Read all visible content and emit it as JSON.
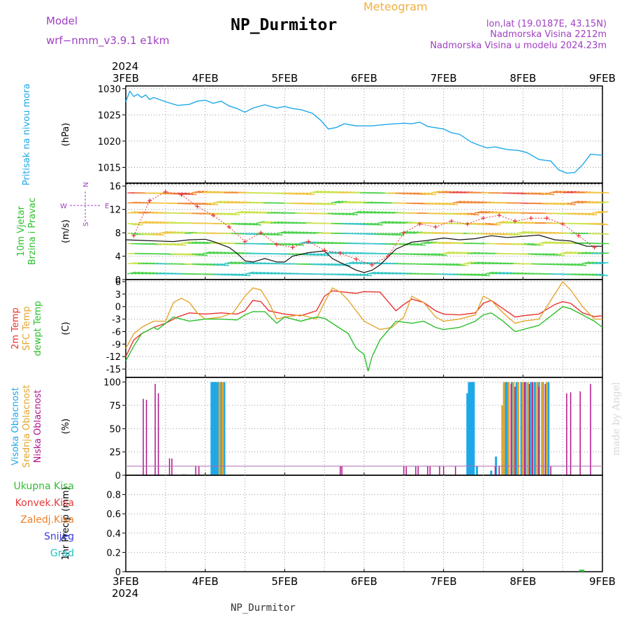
{
  "header": {
    "title": "NP_Durmitor",
    "model_label": "Model",
    "model_name": "wrf−nmm_v3.9.1  e1km",
    "meteogram_label": "Meteogram",
    "coords": "lon,lat (19.0187E, 43.15N)",
    "elevation": "Nadmorska Visina 2212m",
    "model_elevation": "Nadmorska Visina u modelu 2024.23m",
    "footer_station": "NP_Durmitor",
    "watermark": "made by Angel"
  },
  "colors": {
    "pressure": "#1ea8e8",
    "temp2m": "#e8332f",
    "sfc": "#e3a62e",
    "dew": "#2bbf2b",
    "high_cloud": "#1ea8e8",
    "mid_cloud": "#e3a62e",
    "low_cloud": "#b0148c",
    "gust": "#111111",
    "compass": "#a040c0",
    "total_precip": "#33bb33",
    "conv_precip": "#e83a3a",
    "freezing_precip": "#f07f2a",
    "snow": "#3a3ae0",
    "hail": "#22c2c2"
  },
  "compass": {
    "w": "W",
    "e": "E",
    "n": "N",
    "s": "S"
  },
  "chart_data": {
    "type": "line",
    "title": "NP_Durmitor",
    "x_year_label": "2024",
    "x_categories": [
      "3FEB",
      "4FEB",
      "5FEB",
      "6FEB",
      "7FEB",
      "8FEB",
      "9FEB"
    ],
    "xlim_days": [
      0,
      6
    ],
    "panels": [
      {
        "id": "pressure",
        "left_labels": [
          "Pritisak na nivou mora"
        ],
        "unit": "(hPa)",
        "ylim": [
          1012,
          1030.5
        ],
        "yticks": [
          1015,
          1020,
          1025,
          1030
        ],
        "series": [
          {
            "name": "Pritisak na nivou mora",
            "x": [
              0,
              0.05,
              0.1,
              0.15,
              0.2,
              0.25,
              0.3,
              0.35,
              0.5,
              0.65,
              0.8,
              0.9,
              1.0,
              1.1,
              1.2,
              1.3,
              1.4,
              1.5,
              1.6,
              1.75,
              1.9,
              2.0,
              2.1,
              2.2,
              2.35,
              2.45,
              2.55,
              2.65,
              2.75,
              2.9,
              3.1,
              3.3,
              3.5,
              3.6,
              3.7,
              3.8,
              4.0,
              4.1,
              4.2,
              4.35,
              4.45,
              4.55,
              4.65,
              4.8,
              4.95,
              5.05,
              5.2,
              5.35,
              5.45,
              5.55,
              5.65,
              5.75,
              5.85,
              6.0
            ],
            "values": [
              1027.5,
              1029.5,
              1028.5,
              1028.9,
              1028.3,
              1028.8,
              1027.9,
              1028.3,
              1027.5,
              1026.8,
              1027.0,
              1027.6,
              1027.8,
              1027.2,
              1027.6,
              1026.7,
              1026.2,
              1025.5,
              1026.3,
              1026.9,
              1026.3,
              1026.6,
              1026.2,
              1026.0,
              1025.3,
              1024.0,
              1022.3,
              1022.6,
              1023.3,
              1022.9,
              1022.9,
              1023.2,
              1023.4,
              1023.3,
              1023.6,
              1022.8,
              1022.3,
              1021.6,
              1021.3,
              1019.8,
              1019.2,
              1018.7,
              1018.9,
              1018.4,
              1018.2,
              1017.8,
              1016.5,
              1016.2,
              1014.5,
              1013.9,
              1014.0,
              1015.5,
              1017.5,
              1017.3
            ]
          }
        ]
      },
      {
        "id": "wind",
        "left_labels": [
          "10m Vjetar",
          "Brzina i Pravac"
        ],
        "unit": "(m/s)",
        "ylim": [
          0,
          16.5
        ],
        "yticks": [
          0,
          4,
          8,
          12,
          16
        ],
        "series": [
          {
            "name": "mean speed",
            "x": [
              0,
              0.2,
              0.4,
              0.6,
              0.8,
              1.0,
              1.1,
              1.2,
              1.3,
              1.4,
              1.5,
              1.6,
              1.75,
              1.9,
              2.0,
              2.1,
              2.3,
              2.5,
              2.6,
              2.7,
              2.8,
              2.9,
              3.0,
              3.1,
              3.2,
              3.4,
              3.6,
              3.8,
              4.0,
              4.2,
              4.4,
              4.6,
              4.8,
              5.0,
              5.2,
              5.4,
              5.6,
              5.8,
              6.0
            ],
            "values": [
              6.8,
              6.7,
              6.6,
              6.5,
              6.8,
              6.9,
              6.5,
              6.0,
              5.5,
              4.5,
              3.2,
              3.0,
              3.6,
              3.0,
              3.0,
              4.0,
              4.6,
              4.9,
              3.6,
              2.9,
              2.3,
              1.6,
              1.2,
              1.6,
              2.5,
              5.2,
              6.4,
              6.7,
              7.1,
              6.8,
              7.0,
              7.5,
              7.2,
              7.4,
              7.6,
              6.8,
              6.6,
              5.7,
              5.7
            ]
          },
          {
            "name": "gust",
            "x": [
              0.1,
              0.3,
              0.5,
              0.7,
              0.9,
              1.1,
              1.3,
              1.5,
              1.7,
              1.9,
              2.1,
              2.3,
              2.5,
              2.7,
              2.9,
              3.1,
              3.3,
              3.5,
              3.7,
              3.9,
              4.1,
              4.3,
              4.5,
              4.7,
              4.9,
              5.1,
              5.3,
              5.5,
              5.7,
              5.9
            ],
            "values": [
              7.5,
              13.5,
              15.0,
              14.5,
              12.5,
              11.0,
              9.0,
              6.5,
              8.0,
              6.0,
              5.5,
              6.5,
              5.0,
              4.5,
              3.5,
              2.5,
              4.0,
              8.0,
              9.5,
              9.0,
              10.0,
              9.5,
              10.5,
              11.0,
              10.0,
              10.5,
              10.5,
              9.5,
              7.5,
              5.5
            ]
          }
        ]
      },
      {
        "id": "temperature",
        "left_labels": [
          "2m Temp",
          "SFC Temp",
          "dewpt Temp"
        ],
        "unit": "(C)",
        "ylim": [
          -17,
          6.5
        ],
        "yticks": [
          6,
          3,
          0,
          -3,
          -6,
          -9,
          -12,
          -15
        ],
        "series": [
          {
            "name": "2m Temp",
            "x": [
              0,
              0.1,
              0.2,
              0.35,
              0.5,
              0.65,
              0.8,
              1.0,
              1.2,
              1.4,
              1.5,
              1.6,
              1.7,
              1.8,
              2.0,
              2.2,
              2.4,
              2.5,
              2.6,
              2.75,
              2.9,
              3.0,
              3.2,
              3.4,
              3.5,
              3.6,
              3.75,
              3.9,
              4.0,
              4.2,
              4.4,
              4.5,
              4.6,
              4.75,
              4.9,
              5.0,
              5.2,
              5.4,
              5.5,
              5.6,
              5.75,
              5.9,
              6.0
            ],
            "values": [
              -12.0,
              -8.0,
              -6.5,
              -5.0,
              -4.0,
              -2.5,
              -1.5,
              -1.8,
              -1.5,
              -1.8,
              -1.0,
              1.5,
              1.2,
              -1.0,
              -1.8,
              -2.2,
              -1.0,
              2.5,
              3.8,
              3.5,
              3.2,
              3.6,
              3.5,
              -1.0,
              0.5,
              1.8,
              1.0,
              -1.0,
              -1.8,
              -2.0,
              -1.5,
              0.8,
              1.5,
              -0.5,
              -2.5,
              -2.2,
              -1.8,
              0.5,
              1.2,
              0.8,
              -1.5,
              -2.4,
              -2.2
            ]
          },
          {
            "name": "SFC Temp",
            "x": [
              0,
              0.1,
              0.2,
              0.35,
              0.5,
              0.6,
              0.7,
              0.8,
              0.9,
              1.0,
              1.2,
              1.35,
              1.5,
              1.6,
              1.7,
              1.8,
              1.9,
              2.0,
              2.2,
              2.4,
              2.5,
              2.6,
              2.7,
              2.8,
              3.0,
              3.2,
              3.35,
              3.5,
              3.6,
              3.75,
              3.9,
              4.0,
              4.2,
              4.4,
              4.5,
              4.6,
              4.75,
              4.9,
              5.0,
              5.2,
              5.4,
              5.5,
              5.6,
              5.75,
              5.9,
              6.0
            ],
            "values": [
              -10.0,
              -6.5,
              -5.0,
              -3.5,
              -3.5,
              1.0,
              2.0,
              1.0,
              -1.5,
              -3.0,
              -2.5,
              -1.5,
              2.5,
              4.5,
              4.0,
              1.0,
              -3.0,
              -2.5,
              -2.0,
              -3.0,
              1.0,
              4.5,
              3.5,
              1.5,
              -3.5,
              -5.5,
              -5.0,
              -2.5,
              2.5,
              1.0,
              -2.5,
              -3.5,
              -3.0,
              -2.0,
              2.5,
              1.5,
              -1.5,
              -4.0,
              -3.5,
              -3.0,
              3.0,
              6.0,
              4.0,
              0.0,
              -3.0,
              -3.0
            ]
          },
          {
            "name": "dewpt Temp",
            "x": [
              0,
              0.1,
              0.2,
              0.35,
              0.4,
              0.6,
              0.8,
              1.0,
              1.2,
              1.4,
              1.5,
              1.6,
              1.75,
              1.9,
              2.0,
              2.2,
              2.4,
              2.5,
              2.6,
              2.8,
              2.9,
              3.0,
              3.05,
              3.1,
              3.2,
              3.4,
              3.6,
              3.75,
              3.9,
              4.0,
              4.2,
              4.4,
              4.5,
              4.6,
              4.75,
              4.9,
              5.0,
              5.2,
              5.4,
              5.5,
              5.6,
              5.75,
              5.9,
              6.0
            ],
            "values": [
              -13.0,
              -9.5,
              -6.5,
              -5.0,
              -5.5,
              -2.5,
              -3.5,
              -3.0,
              -3.0,
              -3.2,
              -2.0,
              -1.2,
              -1.2,
              -4.0,
              -2.5,
              -3.5,
              -2.5,
              -2.8,
              -4.0,
              -6.5,
              -10.0,
              -11.5,
              -15.5,
              -12.0,
              -8.0,
              -3.5,
              -4.0,
              -3.5,
              -5.0,
              -5.5,
              -5.0,
              -3.5,
              -2.0,
              -1.5,
              -3.5,
              -6.0,
              -5.5,
              -4.5,
              -1.5,
              0.0,
              -0.5,
              -2.0,
              -3.5,
              -5.0
            ]
          }
        ]
      },
      {
        "id": "cloud",
        "left_labels": [
          "Visoka Oblacnost",
          "Srednja Oblacnost",
          "Niska Oblacnost"
        ],
        "unit": "(%)",
        "ylim": [
          0,
          105
        ],
        "yticks": [
          0,
          25,
          50,
          75,
          100
        ],
        "series": [
          {
            "name": "Visoka Oblacnost",
            "type": "bar",
            "x": [
              1.08,
              1.1,
              1.12,
              1.14,
              1.16,
              1.2,
              1.24,
              4.3,
              4.32,
              4.34,
              4.36,
              4.38,
              4.42,
              4.6,
              4.66,
              4.78,
              4.8,
              4.86,
              4.92,
              4.98,
              5.03,
              5.1,
              5.15,
              5.2,
              5.25,
              5.32
            ],
            "values": [
              100,
              100,
              100,
              100,
              100,
              100,
              100,
              88,
              100,
              100,
              100,
              100,
              10,
              5,
              20,
              100,
              100,
              100,
              100,
              100,
              100,
              100,
              100,
              100,
              100,
              100
            ]
          },
          {
            "name": "Srednja Oblacnost",
            "type": "bar",
            "x": [
              1.18,
              1.22,
              4.74,
              4.76,
              4.82,
              4.88,
              4.94,
              5.0,
              5.06,
              5.12,
              5.18,
              5.24,
              5.3
            ],
            "values": [
              100,
              100,
              75,
              100,
              100,
              100,
              100,
              100,
              100,
              100,
              100,
              100,
              100
            ]
          },
          {
            "name": "Niska Oblacnost",
            "type": "bar",
            "x": [
              0.22,
              0.26,
              0.37,
              0.41,
              0.55,
              0.58,
              0.72,
              0.75,
              0.88,
              0.92,
              2.7,
              2.72,
              3.5,
              3.53,
              3.65,
              3.68,
              3.8,
              3.83,
              3.95,
              4.0,
              4.15,
              4.65,
              4.7,
              4.85,
              4.9,
              5.02,
              5.08,
              5.12,
              5.2,
              5.28,
              5.35,
              5.55,
              5.6,
              5.72,
              5.85
            ],
            "values": [
              82,
              81,
              98,
              88,
              18,
              18,
              1,
              1,
              10,
              10,
              10,
              10,
              10,
              10,
              10,
              10,
              10,
              10,
              10,
              10,
              10,
              10,
              10,
              98,
              95,
              100,
              98,
              100,
              95,
              98,
              10,
              88,
              89,
              90,
              98
            ]
          }
        ]
      },
      {
        "id": "precip",
        "left_labels": [
          "Ukupna Kisa",
          "Konvek.Kisa",
          "Zaledj.Kisa",
          "Snijeg",
          "Grad"
        ],
        "unit": "1hr Precip (mm)",
        "ylim": [
          0,
          1.0
        ],
        "yticks": [
          0,
          0.2,
          0.4,
          0.6,
          0.8
        ],
        "series": [
          {
            "name": "Ukupna Kisa",
            "type": "bar",
            "x": [
              5.72,
              5.74,
              5.76
            ],
            "values": [
              0.02,
              0.02,
              0.02
            ]
          }
        ]
      }
    ]
  }
}
